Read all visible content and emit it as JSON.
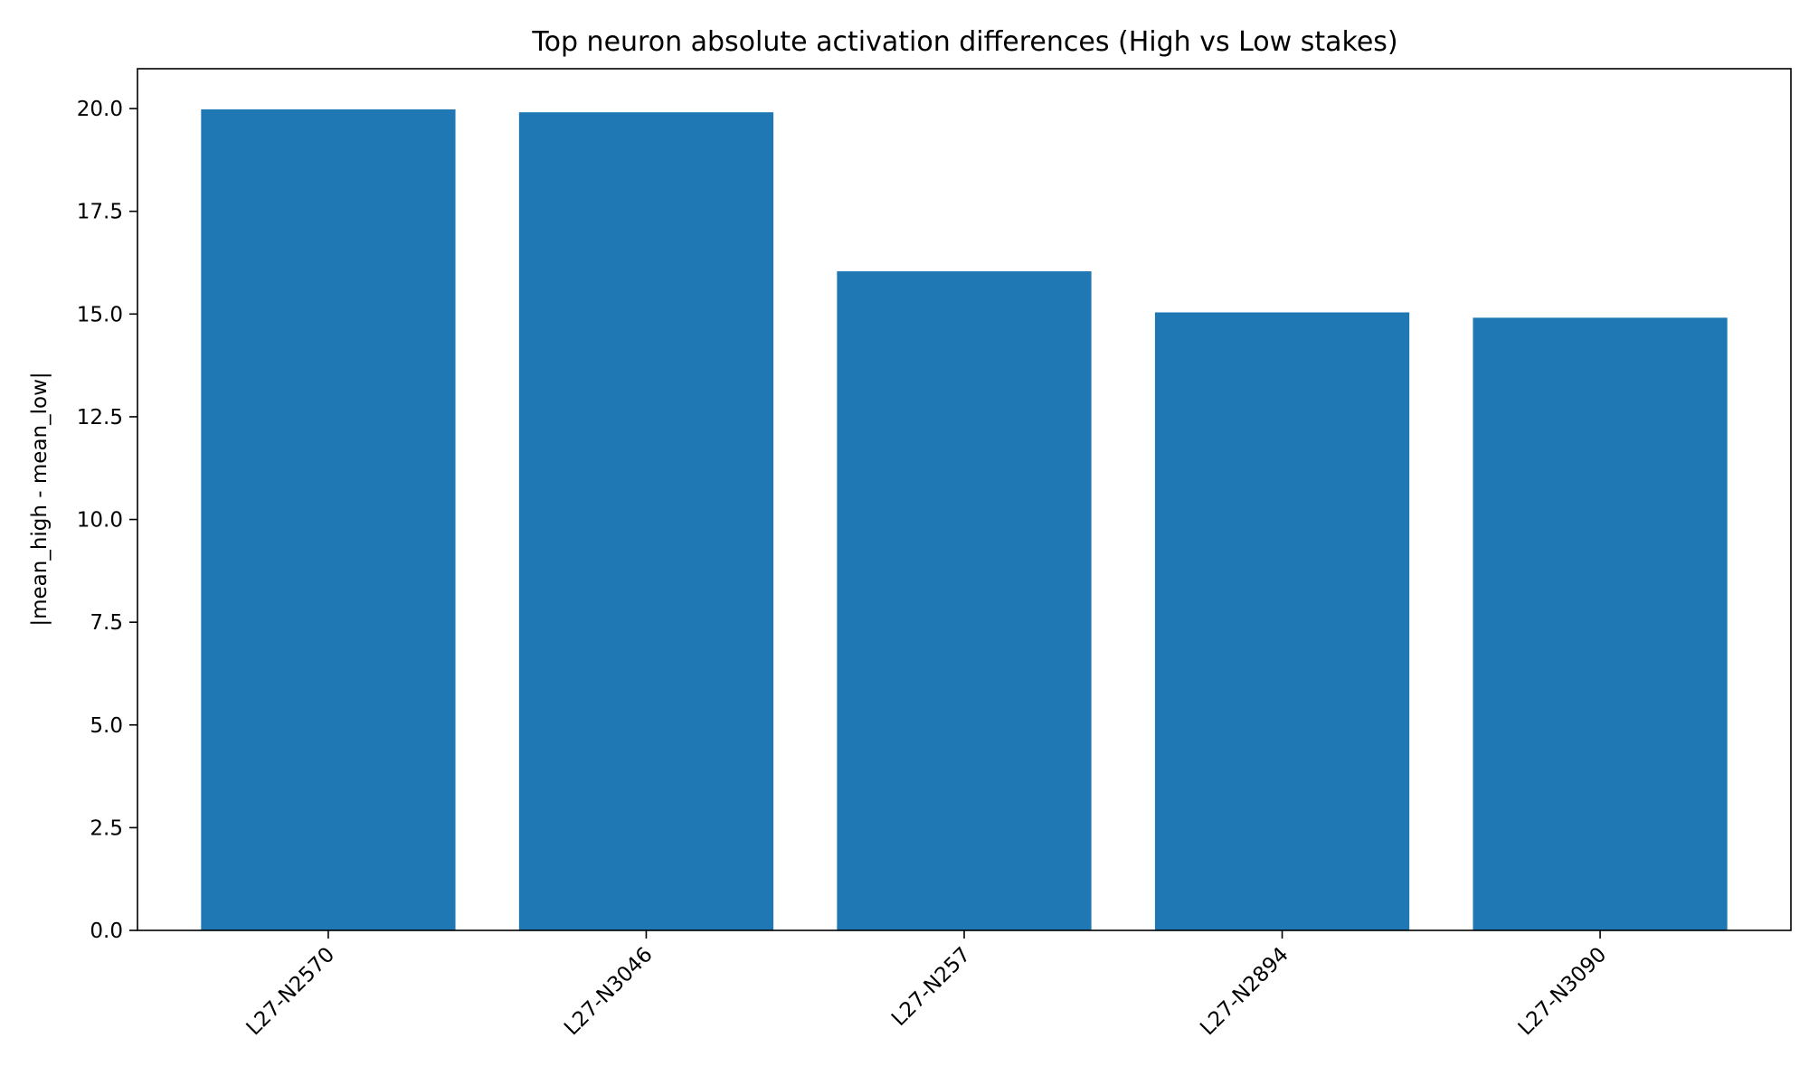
{
  "chart_data": {
    "type": "bar",
    "title": "Top neuron absolute activation differences (High vs Low stakes)",
    "xlabel": "",
    "ylabel": "|mean_high - mean_low|",
    "categories": [
      "L27-N2570",
      "L27-N3046",
      "L27-N257",
      "L27-N2894",
      "L27-N3090"
    ],
    "values": [
      19.98,
      19.91,
      16.04,
      15.04,
      14.91
    ],
    "ylim": [
      0,
      20.97
    ],
    "yticks": [
      0.0,
      2.5,
      5.0,
      7.5,
      10.0,
      12.5,
      15.0,
      17.5,
      20.0
    ],
    "ytick_labels": [
      "0.0",
      "2.5",
      "5.0",
      "7.5",
      "10.0",
      "12.5",
      "15.0",
      "17.5",
      "20.0"
    ],
    "bar_color": "#1f77b4",
    "xtick_rotation_deg": 45,
    "grid": false,
    "legend": false
  }
}
